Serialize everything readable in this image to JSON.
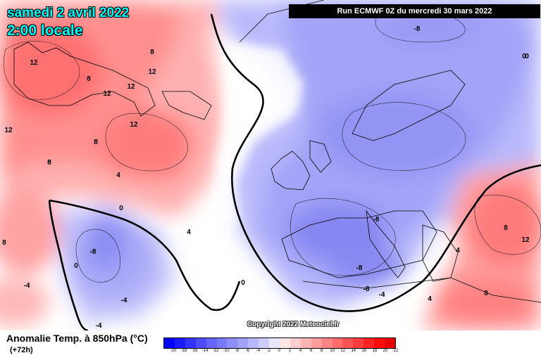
{
  "header": {
    "date": "samedi 2 avril 2022",
    "time": "2:00 locale",
    "run": "Run ECMWF 0Z du mercredi 30 mars 2022"
  },
  "map": {
    "contour_labels": [
      "-8",
      "0",
      "12",
      "8",
      "8",
      "12",
      "12",
      "12",
      "12",
      "8",
      "8",
      "12",
      "8",
      "8",
      "4",
      "8",
      "0",
      "-8",
      "-4",
      "-4",
      "4",
      "0",
      "-4",
      "-8",
      "-8",
      "-8",
      "-4",
      "4",
      "8",
      "12",
      "0",
      "4",
      "0",
      "8"
    ]
  },
  "copyright": "Copyright 2022 Meteociel.fr",
  "legend": {
    "title": "Anomalie Temp. à 850hPa (°C)",
    "subtitle": "(+72h)",
    "scale_labels": [
      "-20",
      "-18",
      "-16",
      "-14",
      "-12",
      "-10",
      "-8",
      "-6",
      "-4",
      "-2",
      "0",
      "2",
      "4",
      "6",
      "8",
      "10",
      "12",
      "14",
      "16",
      "18",
      "20",
      "22"
    ],
    "scale_colors": [
      "#0000ff",
      "#1a1aff",
      "#3333ff",
      "#4d4dff",
      "#6666ff",
      "#7a7aff",
      "#8e8eff",
      "#a2a2ff",
      "#b8b8ff",
      "#cdcdff",
      "#e6e6ff",
      "#ffe6e6",
      "#ffcdcd",
      "#ffb4b4",
      "#ff9c9c",
      "#ff8484",
      "#ff6c6c",
      "#ff5454",
      "#ff3c3c",
      "#ff2424",
      "#ff0c0c",
      "#e60000"
    ]
  },
  "colors": {
    "warm": "#ff7a7a",
    "cold": "#8585f5",
    "zero_line": "#000000",
    "title_text": "#00ffff"
  }
}
